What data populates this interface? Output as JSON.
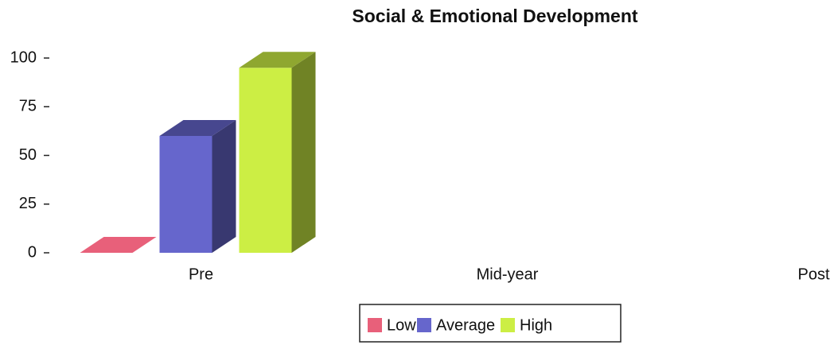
{
  "chart_data": {
    "type": "bar3d",
    "title": "Social & Emotional Development",
    "categories": [
      "Pre",
      "Mid-year",
      "Post"
    ],
    "series": [
      {
        "name": "Low",
        "color": "#e8607a",
        "values": [
          0,
          null,
          null
        ]
      },
      {
        "name": "Average",
        "color": "#6666cc",
        "values": [
          60,
          null,
          null
        ]
      },
      {
        "name": "High",
        "color": "#ccee44",
        "values": [
          95,
          null,
          null
        ]
      }
    ],
    "ylim": [
      0,
      100
    ],
    "yticks": [
      0,
      25,
      50,
      75,
      100
    ],
    "legend": "bottom"
  }
}
